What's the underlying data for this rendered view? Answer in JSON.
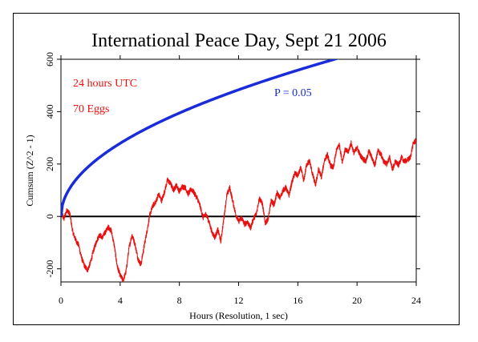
{
  "chart_data": {
    "type": "line",
    "title": "International Peace Day, Sept 21 2006",
    "xlabel": "Hours (Resolution, 1 sec)",
    "ylabel": "Cumsum (Z^2 - 1)",
    "xlim": [
      0,
      24
    ],
    "ylim": [
      -250,
      600
    ],
    "xticks": [
      0,
      4,
      8,
      12,
      16,
      20,
      24
    ],
    "yticks": [
      -200,
      0,
      200,
      400,
      600
    ],
    "annotations": [
      {
        "text": "24 hours UTC",
        "color": "#e8110f"
      },
      {
        "text": "70 Eggs",
        "color": "#e8110f"
      },
      {
        "text": "P = 0.05",
        "color": "#1a2bd9"
      }
    ],
    "series": [
      {
        "color": "#e8110f",
        "x": [
          0,
          0.2,
          0.4,
          0.6,
          0.8,
          1.0,
          1.2,
          1.4,
          1.6,
          1.8,
          2.0,
          2.2,
          2.4,
          2.6,
          2.8,
          3.0,
          3.2,
          3.4,
          3.6,
          3.8,
          4.0,
          4.2,
          4.4,
          4.6,
          4.8,
          5.0,
          5.2,
          5.4,
          5.6,
          5.8,
          6.0,
          6.2,
          6.4,
          6.6,
          6.8,
          7.0,
          7.2,
          7.4,
          7.6,
          7.8,
          8.0,
          8.2,
          8.4,
          8.6,
          8.8,
          9.0,
          9.2,
          9.4,
          9.6,
          9.8,
          10.0,
          10.2,
          10.4,
          10.6,
          10.8,
          11.0,
          11.2,
          11.4,
          11.6,
          11.8,
          12.0,
          12.2,
          12.4,
          12.6,
          12.8,
          13.0,
          13.2,
          13.4,
          13.6,
          13.8,
          14.0,
          14.2,
          14.4,
          14.6,
          14.8,
          15.0,
          15.2,
          15.4,
          15.6,
          15.8,
          16.0,
          16.2,
          16.4,
          16.6,
          16.8,
          17.0,
          17.2,
          17.4,
          17.6,
          17.8,
          18.0,
          18.2,
          18.4,
          18.6,
          18.8,
          19.0,
          19.2,
          19.4,
          19.6,
          19.8,
          20.0,
          20.2,
          20.4,
          20.6,
          20.8,
          21.0,
          21.2,
          21.4,
          21.6,
          21.8,
          22.0,
          22.2,
          22.4,
          22.6,
          22.8,
          23.0,
          23.2,
          23.4,
          23.6,
          23.8,
          24.0
        ],
        "values": [
          20,
          -10,
          25,
          10,
          -60,
          -90,
          -110,
          -160,
          -190,
          -205,
          -175,
          -130,
          -95,
          -70,
          -80,
          -60,
          -40,
          -55,
          -110,
          -190,
          -225,
          -245,
          -210,
          -120,
          -70,
          -105,
          -160,
          -185,
          -120,
          -60,
          5,
          40,
          55,
          85,
          60,
          95,
          140,
          125,
          100,
          120,
          95,
          115,
          110,
          85,
          105,
          90,
          70,
          40,
          -5,
          10,
          -20,
          -60,
          -80,
          -50,
          -95,
          -10,
          80,
          110,
          60,
          10,
          -20,
          -5,
          -30,
          -20,
          -45,
          -10,
          10,
          70,
          50,
          -25,
          -10,
          60,
          45,
          90,
          70,
          100,
          110,
          80,
          130,
          165,
          155,
          185,
          135,
          200,
          210,
          160,
          120,
          180,
          150,
          215,
          235,
          195,
          185,
          250,
          275,
          210,
          255,
          245,
          280,
          240,
          265,
          235,
          220,
          210,
          250,
          225,
          195,
          250,
          240,
          210,
          200,
          225,
          180,
          210,
          195,
          225,
          210,
          215,
          225,
          280,
          290
        ]
      },
      {
        "name": "P = 0.05",
        "color": "#1a2bd9",
        "type": "p05_envelope"
      }
    ]
  }
}
